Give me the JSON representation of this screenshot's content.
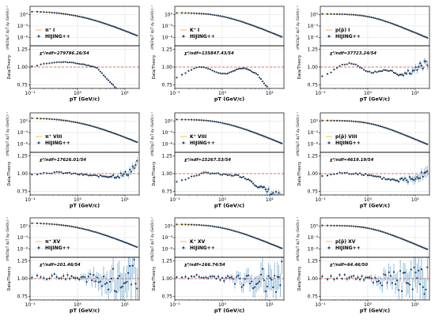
{
  "chart_data": [
    {
      "type": "scatter",
      "row": 0,
      "col": 0,
      "particle": "π",
      "legend_label": "π⁺ I",
      "model_label": "HIJING++",
      "chi2": "χ²/ndf=279786.26/54",
      "ratio_shape": "pion_low",
      "ratio_spread": 0.01,
      "xlabel": "pT (GeV/c)",
      "ylabel_top": "d²N/2πpT dpT dy (GeV/c)⁻²",
      "ylabel_bottom": "Data/Theory",
      "top_yticks": [
        "10⁰",
        "10⁻⁴",
        "10⁻⁸"
      ],
      "ratio_yticks": [
        "0.75",
        "1.00",
        "1.25"
      ],
      "xticks": [
        "10⁻¹",
        "10⁰",
        "10¹"
      ],
      "xlim": [
        0.1,
        20
      ],
      "ratio_ylim": [
        0.7,
        1.3
      ]
    },
    {
      "type": "scatter",
      "row": 0,
      "col": 1,
      "particle": "K",
      "legend_label": "K⁺ I",
      "model_label": "HIJING++",
      "chi2": "χ²/ndf=135847.43/54",
      "ratio_shape": "kaon_low",
      "ratio_spread": 0.01,
      "xlabel": "pT (GeV/c)",
      "ylabel_top": "d²N/2πpT dpT dy (GeV/c)⁻²",
      "ylabel_bottom": "Data/Theory",
      "top_yticks": [
        "10⁰",
        "10⁻⁴",
        "10⁻⁸"
      ],
      "ratio_yticks": [
        "0.75",
        "1.00",
        "1.25"
      ],
      "xticks": [
        "10⁻¹",
        "10⁰",
        "10¹"
      ],
      "xlim": [
        0.1,
        20
      ],
      "ratio_ylim": [
        0.7,
        1.3
      ]
    },
    {
      "type": "scatter",
      "row": 0,
      "col": 2,
      "particle": "p",
      "legend_label": "p(p̄) I",
      "model_label": "HIJING++",
      "chi2": "χ²/ndf=37723.24/54",
      "ratio_shape": "proton_low",
      "ratio_spread": 0.03,
      "xlabel": "pT (GeV/c)",
      "ylabel_top": "d²N/2πpT dpT dy (GeV/c)⁻²",
      "ylabel_bottom": "Data/Theory",
      "top_yticks": [
        "10⁰",
        "10⁻⁴",
        "10⁻⁸"
      ],
      "ratio_yticks": [
        "0.75",
        "1.00",
        "1.25"
      ],
      "xticks": [
        "10⁻¹",
        "10⁰",
        "10¹"
      ],
      "xlim": [
        0.1,
        20
      ],
      "ratio_ylim": [
        0.7,
        1.3
      ]
    },
    {
      "type": "scatter",
      "row": 1,
      "col": 0,
      "particle": "π",
      "legend_label": "π⁺ VIII",
      "model_label": "HIJING++",
      "chi2": "χ²/ndf=17626.01/54",
      "ratio_shape": "flat_mid",
      "ratio_spread": 0.03,
      "xlabel": "pT (GeV/c)",
      "ylabel_top": "d²N/2πpT dpT dy (GeV/c)⁻²",
      "ylabel_bottom": "Data/Theory",
      "top_yticks": [
        "10⁰",
        "10⁻⁴",
        "10⁻⁸"
      ],
      "ratio_yticks": [
        "0.75",
        "1.00",
        "1.25"
      ],
      "xticks": [
        "10⁻¹",
        "10⁰",
        "10¹"
      ],
      "xlim": [
        0.1,
        20
      ],
      "ratio_ylim": [
        0.7,
        1.3
      ]
    },
    {
      "type": "scatter",
      "row": 1,
      "col": 1,
      "particle": "K",
      "legend_label": "K⁺ VIII",
      "model_label": "HIJING++",
      "chi2": "χ²/ndf=15267.53/54",
      "ratio_shape": "kaon_mid",
      "ratio_spread": 0.03,
      "xlabel": "pT (GeV/c)",
      "ylabel_top": "d²N/2πpT dpT dy (GeV/c)⁻²",
      "ylabel_bottom": "Data/Theory",
      "top_yticks": [
        "10⁰",
        "10⁻⁴",
        "10⁻⁸"
      ],
      "ratio_yticks": [
        "0.75",
        "1.00",
        "1.25"
      ],
      "xticks": [
        "10⁻¹",
        "10⁰",
        "10¹"
      ],
      "xlim": [
        0.1,
        20
      ],
      "ratio_ylim": [
        0.7,
        1.3
      ]
    },
    {
      "type": "scatter",
      "row": 1,
      "col": 2,
      "particle": "p",
      "legend_label": "p(p̄) VIII",
      "model_label": "HIJING++",
      "chi2": "χ²/ndf=4619.19/54",
      "ratio_shape": "proton_mid",
      "ratio_spread": 0.04,
      "xlabel": "pT (GeV/c)",
      "ylabel_top": "d²N/2πpT dpT dy (GeV/c)⁻²",
      "ylabel_bottom": "Data/Theory",
      "top_yticks": [
        "10⁰",
        "10⁻⁴",
        "10⁻⁸"
      ],
      "ratio_yticks": [
        "0.75",
        "1.00",
        "1.25"
      ],
      "xticks": [
        "10⁻¹",
        "10⁰",
        "10¹"
      ],
      "xlim": [
        0.1,
        20
      ],
      "ratio_ylim": [
        0.7,
        1.3
      ]
    },
    {
      "type": "scatter",
      "row": 2,
      "col": 0,
      "particle": "π",
      "legend_label": "π⁺ XV",
      "model_label": "HIJING++",
      "chi2": "χ²/ndf=201.46/54",
      "ratio_shape": "noisy_high",
      "ratio_spread": 0.12,
      "xlabel": "pT (GeV/c)",
      "ylabel_top": "d²N/2πpT dpT dy (GeV/c)⁻²",
      "ylabel_bottom": "Data/Theory",
      "top_yticks": [
        "10⁰",
        "10⁻⁴",
        "10⁻⁸"
      ],
      "ratio_yticks": [
        "0.75",
        "1.00",
        "1.25"
      ],
      "xticks": [
        "10⁻¹",
        "10⁰",
        "10¹"
      ],
      "xlim": [
        0.1,
        20
      ],
      "ratio_ylim": [
        0.7,
        1.3
      ]
    },
    {
      "type": "scatter",
      "row": 2,
      "col": 1,
      "particle": "K",
      "legend_label": "K⁺ XV",
      "model_label": "HIJING++",
      "chi2": "χ²/ndf=166.74/54",
      "ratio_shape": "noisy_high",
      "ratio_spread": 0.1,
      "xlabel": "pT (GeV/c)",
      "ylabel_top": "d²N/2πpT dpT dy (GeV/c)⁻²",
      "ylabel_bottom": "Data/Theory",
      "top_yticks": [
        "10⁰",
        "10⁻⁴",
        "10⁻⁸"
      ],
      "ratio_yticks": [
        "0.75",
        "1.00",
        "1.25"
      ],
      "xticks": [
        "10⁻¹",
        "10⁰",
        "10¹"
      ],
      "xlim": [
        0.1,
        20
      ],
      "ratio_ylim": [
        0.7,
        1.3
      ]
    },
    {
      "type": "scatter",
      "row": 2,
      "col": 2,
      "particle": "p",
      "legend_label": "p(p̄) XV",
      "model_label": "HIJING++",
      "chi2": "χ²/ndf=64.46/50",
      "ratio_shape": "noisy_high",
      "ratio_spread": 0.12,
      "xlabel": "pT (GeV/c)",
      "ylabel_top": "d²N/2πpT dpT dy (GeV/c)⁻²",
      "ylabel_bottom": "Data/Theory",
      "top_yticks": [
        "10⁰",
        "10⁻⁴",
        "10⁻⁸"
      ],
      "ratio_yticks": [
        "0.75",
        "1.00",
        "1.25"
      ],
      "xticks": [
        "10⁻¹",
        "10⁰",
        "10¹"
      ],
      "xlim": [
        0.1,
        20
      ],
      "ratio_ylim": [
        0.7,
        1.3
      ]
    }
  ],
  "colors": {
    "data_point": "#1f3a5a",
    "error_bar": "#4a90c2",
    "theory_line": "#f5b740",
    "reference_line": "#e8413a",
    "grid": "#b8b8b8",
    "axis": "#000000"
  }
}
